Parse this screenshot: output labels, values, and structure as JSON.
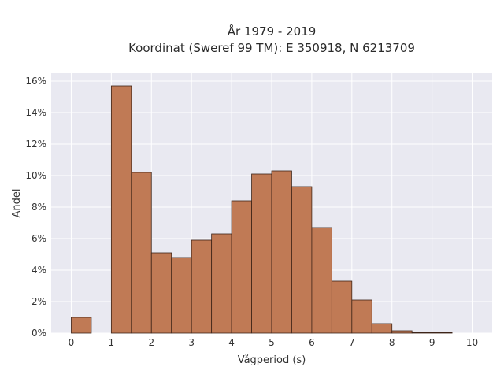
{
  "chart_data": {
    "type": "bar",
    "title_line1": "År 1979 - 2019",
    "title_line2": "Koordinat (Sweref 99 TM): E 350918, N 6213709",
    "xlabel": "Vågperiod (s)",
    "ylabel": "Andel",
    "xlim": [
      -0.5,
      10.5
    ],
    "ylim": [
      0,
      16.5
    ],
    "x_ticks": [
      0,
      1,
      2,
      3,
      4,
      5,
      6,
      7,
      8,
      9,
      10
    ],
    "y_ticks": [
      0,
      2,
      4,
      6,
      8,
      10,
      12,
      14,
      16
    ],
    "y_tick_labels": [
      "0%",
      "2%",
      "4%",
      "6%",
      "8%",
      "10%",
      "12%",
      "14%",
      "16%"
    ],
    "bin_width": 0.5,
    "bins": [
      {
        "start": 0.0,
        "value": 1.0
      },
      {
        "start": 0.5,
        "value": 0.0
      },
      {
        "start": 1.0,
        "value": 15.7
      },
      {
        "start": 1.5,
        "value": 10.2
      },
      {
        "start": 2.0,
        "value": 5.1
      },
      {
        "start": 2.5,
        "value": 4.8
      },
      {
        "start": 3.0,
        "value": 5.9
      },
      {
        "start": 3.5,
        "value": 6.3
      },
      {
        "start": 4.0,
        "value": 8.4
      },
      {
        "start": 4.5,
        "value": 10.1
      },
      {
        "start": 5.0,
        "value": 10.3
      },
      {
        "start": 5.5,
        "value": 9.3
      },
      {
        "start": 6.0,
        "value": 6.7
      },
      {
        "start": 6.5,
        "value": 3.3
      },
      {
        "start": 7.0,
        "value": 2.1
      },
      {
        "start": 7.5,
        "value": 0.6
      },
      {
        "start": 8.0,
        "value": 0.15
      },
      {
        "start": 8.5,
        "value": 0.04
      },
      {
        "start": 9.0,
        "value": 0.03
      },
      {
        "start": 9.5,
        "value": 0.0
      }
    ],
    "colors": {
      "bar_fill": "#c07a55",
      "bar_stroke": "#3d2418",
      "plot_bg": "#e9e9f1",
      "grid": "#ffffff"
    }
  }
}
